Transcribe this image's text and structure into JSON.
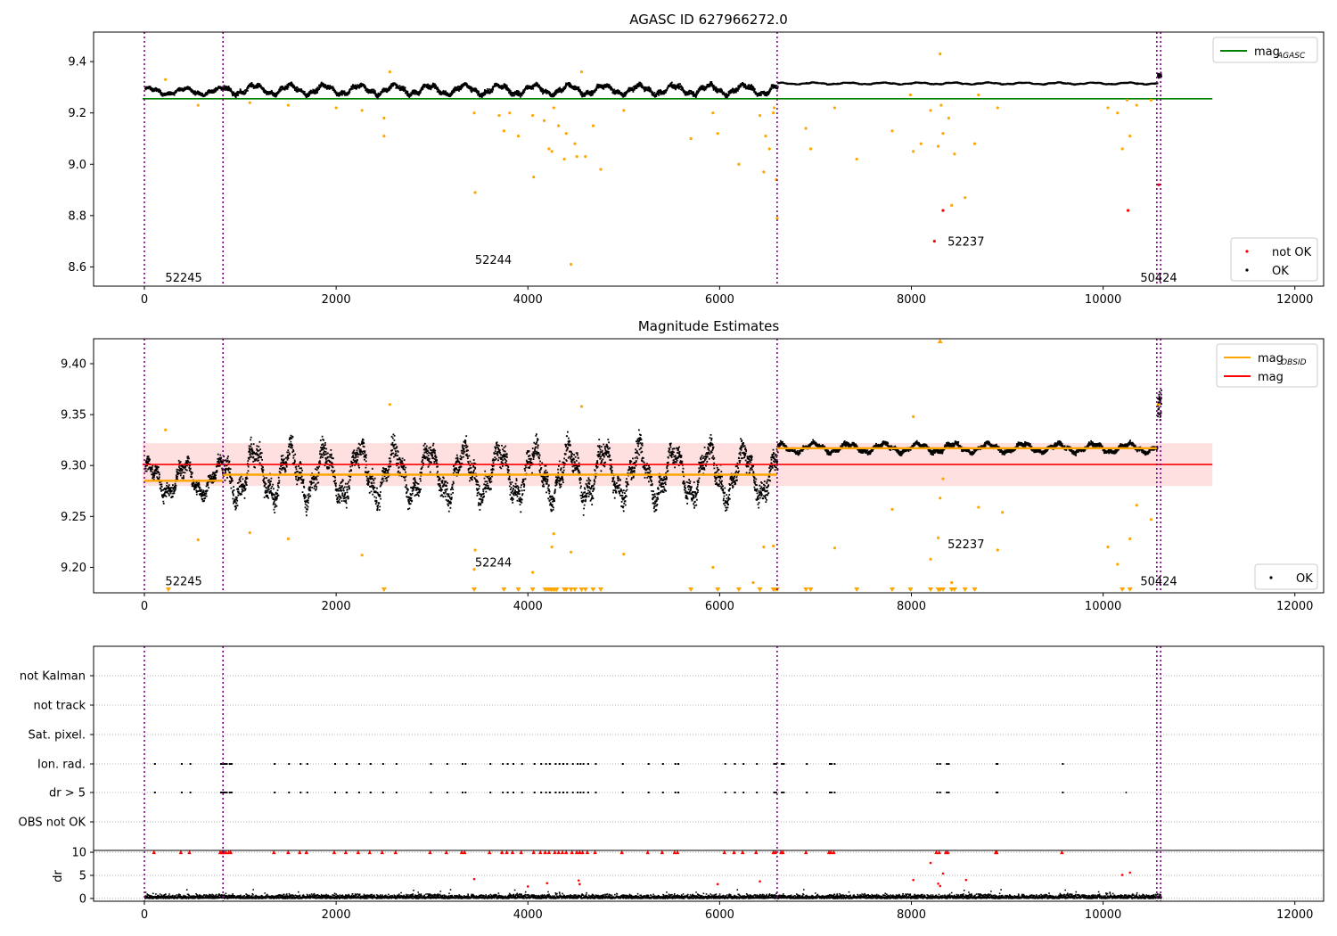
{
  "figure": {
    "background": "#ffffff"
  },
  "colors": {
    "ok": "#000000",
    "orange": "#ffa500",
    "red": "#ff0000",
    "green": "#008000",
    "purple": "#800080",
    "band": "#ffdddd",
    "grid": "#b0b0b0"
  },
  "chart_data": [
    {
      "type": "scatter",
      "title": "AGASC ID 627966272.0",
      "xlim": [
        -530,
        12300
      ],
      "ylim": [
        8.525,
        9.515
      ],
      "xticks": [
        0,
        2000,
        4000,
        6000,
        8000,
        10000,
        12000
      ],
      "xtick_labels": [
        "0",
        "2000",
        "4000",
        "6000",
        "8000",
        "10000",
        "12000"
      ],
      "yticks": [
        8.6,
        8.8,
        9.0,
        9.2,
        9.4
      ],
      "ytick_labels": [
        "8.6",
        "8.8",
        "9.0",
        "9.2",
        "9.4"
      ],
      "vlines": [
        0,
        820,
        6600,
        10560,
        10600
      ],
      "obsid_labels": [
        {
          "text": "52245",
          "x": 410,
          "y": 8.56
        },
        {
          "text": "52244",
          "x": 3640,
          "y": 8.63
        },
        {
          "text": "52237",
          "x": 8570,
          "y": 8.7
        },
        {
          "text": "50424",
          "x": 10580,
          "y": 8.56
        }
      ],
      "hlines": [
        {
          "y": 9.255,
          "x0": -20,
          "x1": 11140,
          "color": "#008000",
          "name": "mag_AGASC"
        }
      ],
      "segments": [
        {
          "x0": 0,
          "x1": 820,
          "mean": 9.287,
          "amp": 0.012
        },
        {
          "x0": 820,
          "x1": 6600,
          "mean": 9.293,
          "amp": 0.017
        },
        {
          "x0": 6600,
          "x1": 10560,
          "mean": 9.318,
          "amp": 0.003
        },
        {
          "x0": 10560,
          "x1": 10600,
          "mean": 9.35,
          "amp": 0.01
        }
      ],
      "outliers_orange": [
        [
          220,
          9.33
        ],
        [
          560,
          9.23
        ],
        [
          1100,
          9.24
        ],
        [
          1500,
          9.23
        ],
        [
          2000,
          9.22
        ],
        [
          2270,
          9.21
        ],
        [
          2500,
          9.18
        ],
        [
          2500,
          9.11
        ],
        [
          2560,
          9.36
        ],
        [
          3440,
          9.2
        ],
        [
          3450,
          8.89
        ],
        [
          3700,
          9.19
        ],
        [
          3750,
          9.13
        ],
        [
          3810,
          9.2
        ],
        [
          3900,
          9.11
        ],
        [
          4050,
          9.19
        ],
        [
          4060,
          8.95
        ],
        [
          4170,
          9.17
        ],
        [
          4220,
          9.06
        ],
        [
          4250,
          9.05
        ],
        [
          4270,
          9.22
        ],
        [
          4320,
          9.15
        ],
        [
          4380,
          9.02
        ],
        [
          4400,
          9.12
        ],
        [
          4450,
          8.61
        ],
        [
          4490,
          9.08
        ],
        [
          4510,
          9.03
        ],
        [
          4560,
          9.36
        ],
        [
          4600,
          9.03
        ],
        [
          4680,
          9.15
        ],
        [
          4760,
          8.98
        ],
        [
          5000,
          9.21
        ],
        [
          5700,
          9.1
        ],
        [
          5930,
          9.2
        ],
        [
          5980,
          9.12
        ],
        [
          6200,
          9.0
        ],
        [
          6420,
          9.19
        ],
        [
          6460,
          8.97
        ],
        [
          6480,
          9.11
        ],
        [
          6520,
          9.06
        ],
        [
          6560,
          9.2
        ],
        [
          6570,
          9.22
        ],
        [
          6590,
          8.94
        ],
        [
          6600,
          8.79
        ],
        [
          6900,
          9.14
        ],
        [
          6950,
          9.06
        ],
        [
          7200,
          9.22
        ],
        [
          7430,
          9.02
        ],
        [
          7800,
          9.13
        ],
        [
          7990,
          9.27
        ],
        [
          8020,
          9.05
        ],
        [
          8100,
          9.08
        ],
        [
          8200,
          9.21
        ],
        [
          8280,
          9.07
        ],
        [
          8300,
          9.43
        ],
        [
          8310,
          9.23
        ],
        [
          8330,
          9.12
        ],
        [
          8390,
          9.18
        ],
        [
          8420,
          8.84
        ],
        [
          8450,
          9.04
        ],
        [
          8560,
          8.87
        ],
        [
          8660,
          9.08
        ],
        [
          8700,
          9.27
        ],
        [
          8900,
          9.22
        ],
        [
          10050,
          9.22
        ],
        [
          10150,
          9.2
        ],
        [
          10200,
          9.06
        ],
        [
          10250,
          9.25
        ],
        [
          10280,
          9.11
        ],
        [
          10350,
          9.23
        ],
        [
          10500,
          9.25
        ]
      ],
      "outliers_red": [
        [
          8240,
          8.7
        ],
        [
          8330,
          8.82
        ],
        [
          10260,
          8.82
        ],
        [
          10580,
          8.92
        ]
      ],
      "legends": [
        {
          "position": "upper-right",
          "items": [
            {
              "label": "mag",
              "sub": "AGASC",
              "kind": "line",
              "color": "#008000"
            }
          ]
        },
        {
          "position": "lower-right",
          "items": [
            {
              "label": "not OK",
              "kind": "dot",
              "color": "#ff0000"
            },
            {
              "label": "OK",
              "kind": "dot",
              "color": "#000000"
            }
          ]
        }
      ]
    },
    {
      "type": "scatter",
      "title": "Magnitude Estimates",
      "xlim": [
        -530,
        12300
      ],
      "ylim": [
        9.175,
        9.4245
      ],
      "xticks": [
        0,
        2000,
        4000,
        6000,
        8000,
        10000,
        12000
      ],
      "xtick_labels": [
        "0",
        "2000",
        "4000",
        "6000",
        "8000",
        "10000",
        "12000"
      ],
      "yticks": [
        9.2,
        9.25,
        9.3,
        9.35,
        9.4
      ],
      "ytick_labels": [
        "9.20",
        "9.25",
        "9.30",
        "9.35",
        "9.40"
      ],
      "vlines": [
        0,
        820,
        6600,
        10560,
        10600
      ],
      "obsid_labels": [
        {
          "text": "52245",
          "x": 410,
          "y": 9.187
        },
        {
          "text": "52244",
          "x": 3640,
          "y": 9.205
        },
        {
          "text": "52237",
          "x": 8570,
          "y": 9.223
        },
        {
          "text": "50424",
          "x": 10580,
          "y": 9.187
        }
      ],
      "band": {
        "y0": 9.28,
        "y1": 9.322,
        "x0": -20,
        "x1": 11140
      },
      "hlines": [
        {
          "y": 9.301,
          "x0": -20,
          "x1": 11140,
          "color": "#ff0000",
          "name": "mag"
        }
      ],
      "obsid_mags": [
        {
          "x0": 0,
          "x1": 820,
          "y": 9.285
        },
        {
          "x0": 820,
          "x1": 6600,
          "y": 9.291
        },
        {
          "x0": 6600,
          "x1": 10560,
          "y": 9.317
        },
        {
          "x0": 10560,
          "x1": 10600,
          "y": 9.36
        }
      ],
      "segments": [
        {
          "x0": 0,
          "x1": 820,
          "mean": 9.287,
          "amp": 0.014
        },
        {
          "x0": 820,
          "x1": 6600,
          "mean": 9.293,
          "amp": 0.022
        },
        {
          "x0": 6600,
          "x1": 10560,
          "mean": 9.318,
          "amp": 0.004
        },
        {
          "x0": 10560,
          "x1": 10600,
          "mean": 9.36,
          "amp": 0.015
        }
      ],
      "outliers_orange": [
        [
          220,
          9.335
        ],
        [
          560,
          9.227
        ],
        [
          1100,
          9.234
        ],
        [
          1500,
          9.228
        ],
        [
          2270,
          9.212
        ],
        [
          2560,
          9.36
        ],
        [
          3440,
          9.198
        ],
        [
          3450,
          9.217
        ],
        [
          4050,
          9.195
        ],
        [
          4250,
          9.22
        ],
        [
          4270,
          9.233
        ],
        [
          4450,
          9.215
        ],
        [
          4560,
          9.358
        ],
        [
          5000,
          9.213
        ],
        [
          5930,
          9.2
        ],
        [
          6350,
          9.185
        ],
        [
          6460,
          9.22
        ],
        [
          6560,
          9.221
        ],
        [
          7200,
          9.219
        ],
        [
          7800,
          9.257
        ],
        [
          8020,
          9.348
        ],
        [
          8200,
          9.208
        ],
        [
          8280,
          9.229
        ],
        [
          8300,
          9.268
        ],
        [
          8330,
          9.287
        ],
        [
          8420,
          9.185
        ],
        [
          8700,
          9.259
        ],
        [
          8900,
          9.217
        ],
        [
          8950,
          9.254
        ],
        [
          10050,
          9.22
        ],
        [
          10150,
          9.203
        ],
        [
          10280,
          9.228
        ],
        [
          10350,
          9.261
        ],
        [
          10500,
          9.247
        ]
      ],
      "triangles_x": [
        250,
        2500,
        3440,
        3750,
        3900,
        4050,
        4180,
        4200,
        4220,
        4240,
        4260,
        4280,
        4300,
        4380,
        4400,
        4450,
        4490,
        4560,
        4600,
        4680,
        4760,
        5700,
        5980,
        6200,
        6420,
        6560,
        6580,
        6600,
        6900,
        6950,
        7430,
        7800,
        7990,
        8200,
        8280,
        8300,
        8330,
        8420,
        8450,
        8560,
        8660,
        10200,
        10280
      ],
      "top_triangle": [
        8300,
        9.4245
      ],
      "legends": [
        {
          "position": "upper-right",
          "items": [
            {
              "label": "mag",
              "sub": "OBSID",
              "kind": "line",
              "color": "#ffa500"
            },
            {
              "label": "mag",
              "kind": "line",
              "color": "#ff0000"
            }
          ]
        },
        {
          "position": "lower-right",
          "items": [
            {
              "label": "OK",
              "kind": "dot",
              "color": "#000000"
            }
          ]
        }
      ]
    },
    {
      "type": "scatter",
      "title": "",
      "ylabel": "dr",
      "xlim": [
        -530,
        12300
      ],
      "xticks": [
        0,
        2000,
        4000,
        6000,
        8000,
        10000,
        12000
      ],
      "xtick_labels": [
        "0",
        "2000",
        "4000",
        "6000",
        "8000",
        "10000",
        "12000"
      ],
      "vlines": [
        0,
        820,
        6600,
        10560,
        10600
      ],
      "flag_rows": [
        "not Kalman",
        "not track",
        "Sat. pixel.",
        "Ion. rad.",
        "dr > 5",
        "OBS not OK"
      ],
      "flag_events_x": [
        100,
        380,
        470,
        790,
        810,
        820,
        830,
        850,
        880,
        900,
        1350,
        1500,
        1620,
        1690,
        1980,
        2100,
        2230,
        2350,
        2480,
        2620,
        2980,
        3150,
        3310,
        3340,
        3600,
        3730,
        3780,
        3840,
        3930,
        4060,
        4130,
        4180,
        4220,
        4280,
        4320,
        4360,
        4400,
        4460,
        4510,
        4540,
        4570,
        4620,
        4700,
        4980,
        5250,
        5400,
        5530,
        5560,
        6050,
        6150,
        6240,
        6380,
        6560,
        6580,
        6640,
        6660,
        6900,
        7140,
        7160,
        7190,
        8260,
        8290,
        8360,
        8380,
        8880,
        8890,
        9570
      ],
      "dr_ylim": [
        -0.6,
        10.4
      ],
      "dr_yticks": [
        0,
        5,
        10
      ],
      "dr_ytick_labels": [
        "0",
        "5",
        "10"
      ],
      "dr_clip": 10,
      "dr_outliers_red": [
        [
          3440,
          4.2
        ],
        [
          4000,
          2.6
        ],
        [
          4200,
          3.3
        ],
        [
          4530,
          3.9
        ],
        [
          4540,
          3.1
        ],
        [
          5980,
          3.1
        ],
        [
          6420,
          3.7
        ],
        [
          8020,
          4.0
        ],
        [
          8200,
          7.7
        ],
        [
          8280,
          3.2
        ],
        [
          8300,
          2.7
        ],
        [
          8330,
          5.4
        ],
        [
          8570,
          4.0
        ],
        [
          10200,
          5.1
        ],
        [
          10280,
          5.6
        ]
      ]
    }
  ]
}
